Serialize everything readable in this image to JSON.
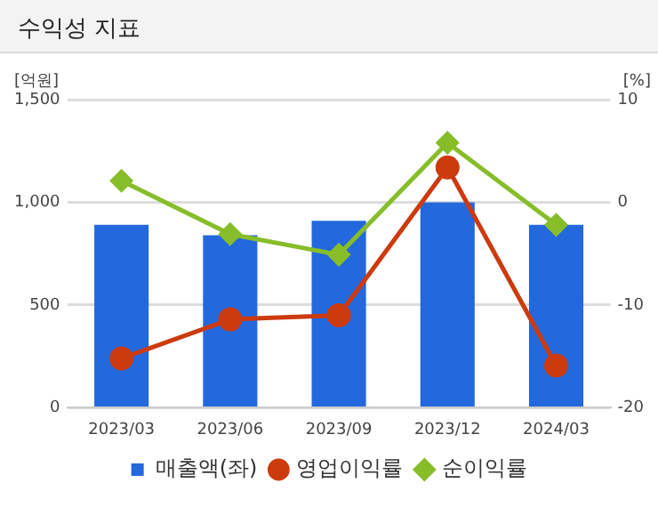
{
  "chart_data": {
    "type": "bar",
    "title": "수익성 지표",
    "ylabel": "[억원]",
    "y2label": "[%]",
    "categories": [
      "2023/03",
      "2023/06",
      "2023/09",
      "2023/12",
      "2024/03"
    ],
    "series": [
      {
        "name": "매출액(좌)",
        "color": "#2368dc",
        "values": [
          890,
          840,
          910,
          1000,
          890
        ]
      },
      {
        "name": "영업이익률",
        "type": "line",
        "axis": "y2",
        "marker": "circle",
        "color": "#cc3a0e",
        "values": [
          -15.2,
          -11.4,
          -11.0,
          3.4,
          -15.9
        ]
      },
      {
        "name": "순이익률",
        "type": "line",
        "axis": "y2",
        "marker": "diamond",
        "color": "#88bd2a",
        "values": [
          2.1,
          -3.1,
          -5.1,
          5.8,
          -2.2
        ]
      }
    ],
    "ylim": [
      0,
      1500
    ],
    "yticks": [
      0,
      {
        "value": 500,
        "label": "500"
      },
      {
        "value": 1000,
        "label": "1,000"
      },
      {
        "value": 1500,
        "label": "1,500"
      }
    ],
    "y2lim": [
      -20,
      10
    ],
    "y2ticks": [
      -20,
      -10,
      0,
      10
    ],
    "grid": "y",
    "legend": "bottom"
  }
}
